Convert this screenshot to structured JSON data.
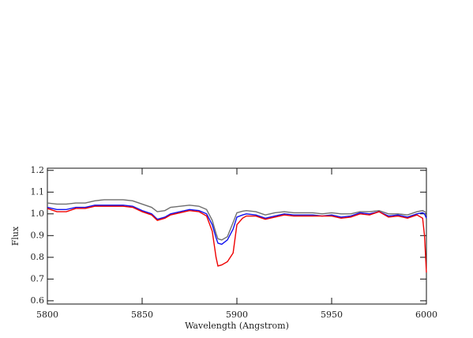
{
  "chart_data": {
    "type": "line",
    "x_label": "Wavelength (Angstrom)",
    "y_label": "Flux",
    "x": [
      5800,
      5805,
      5810,
      5815,
      5820,
      5825,
      5830,
      5835,
      5840,
      5845,
      5850,
      5855,
      5858,
      5862,
      5865,
      5870,
      5875,
      5880,
      5884,
      5887,
      5889,
      5890,
      5892,
      5895,
      5898,
      5900,
      5903,
      5905,
      5910,
      5915,
      5920,
      5925,
      5930,
      5935,
      5940,
      5945,
      5950,
      5955,
      5960,
      5965,
      5970,
      5975,
      5980,
      5985,
      5990,
      5995,
      5998,
      5999,
      6000
    ],
    "series": [
      {
        "color": "#6e6e6e",
        "values": [
          1.05,
          1.045,
          1.045,
          1.05,
          1.05,
          1.06,
          1.065,
          1.065,
          1.065,
          1.06,
          1.045,
          1.03,
          1.01,
          1.015,
          1.03,
          1.035,
          1.04,
          1.035,
          1.02,
          0.97,
          0.91,
          0.885,
          0.88,
          0.895,
          0.96,
          1.005,
          1.012,
          1.015,
          1.01,
          0.995,
          1.005,
          1.01,
          1.005,
          1.005,
          1.005,
          1.0,
          1.005,
          1.0,
          1.0,
          1.01,
          1.01,
          1.015,
          1.0,
          1.0,
          0.995,
          1.01,
          1.015,
          1.01,
          1.005
        ]
      },
      {
        "color": "#1010f0",
        "values": [
          1.03,
          1.02,
          1.02,
          1.03,
          1.03,
          1.04,
          1.04,
          1.04,
          1.04,
          1.035,
          1.015,
          1.0,
          0.975,
          0.985,
          1.0,
          1.01,
          1.02,
          1.015,
          1.0,
          0.95,
          0.89,
          0.865,
          0.86,
          0.88,
          0.93,
          0.985,
          0.995,
          1.0,
          0.995,
          0.98,
          0.99,
          1.0,
          0.995,
          0.995,
          0.995,
          0.99,
          0.995,
          0.985,
          0.99,
          1.005,
          1.0,
          1.01,
          0.99,
          0.995,
          0.985,
          1.0,
          1.005,
          1.0,
          0.98
        ]
      },
      {
        "color": "#ee0000",
        "values": [
          1.025,
          1.01,
          1.01,
          1.025,
          1.025,
          1.035,
          1.035,
          1.035,
          1.035,
          1.03,
          1.01,
          0.995,
          0.97,
          0.98,
          0.995,
          1.005,
          1.015,
          1.01,
          0.99,
          0.92,
          0.8,
          0.76,
          0.765,
          0.78,
          0.82,
          0.95,
          0.98,
          0.99,
          0.99,
          0.975,
          0.985,
          0.995,
          0.99,
          0.99,
          0.99,
          0.99,
          0.99,
          0.98,
          0.985,
          1.0,
          0.995,
          1.01,
          0.985,
          0.99,
          0.98,
          0.995,
          0.98,
          0.9,
          0.73
        ]
      }
    ],
    "xlim": [
      5800,
      6000
    ],
    "xticks": [
      5800,
      5850,
      5900,
      5950,
      6000
    ],
    "ylim": [
      0.585,
      1.21
    ],
    "yticks": [
      0.6,
      0.7,
      0.8,
      0.9,
      {
        "value": 1,
        "label": "1.0"
      },
      1.1,
      1.2
    ]
  }
}
